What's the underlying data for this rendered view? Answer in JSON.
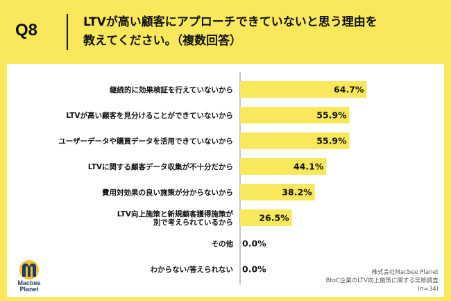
{
  "header": {
    "qnum": "Q8",
    "title_line1": "LTVが高い顧客にアプローチできていないと思う理由を",
    "title_line2": "教えてください。（複数回答）"
  },
  "chart_data": {
    "type": "bar",
    "orientation": "horizontal",
    "xlim": [
      0,
      100
    ],
    "bar_color": "#f9e85b",
    "categories": [
      [
        "継続的に効果検証を行えていないから"
      ],
      [
        "LTVが高い顧客を見分けることができていないから"
      ],
      [
        "ユーザーデータや購買データを活用できていないから"
      ],
      [
        "LTVに関する顧客データ収集が不十分だから"
      ],
      [
        "費用対効果の良い施策が分からないから"
      ],
      [
        "LTV向上施策と新規顧客獲得施策が",
        "別で考えられているから"
      ],
      [
        "その他"
      ],
      [
        "わからない/答えられない"
      ]
    ],
    "values": [
      64.7,
      55.9,
      55.9,
      44.1,
      38.2,
      26.5,
      0.0,
      0.0
    ],
    "value_labels": [
      "64.7%",
      "55.9%",
      "55.9%",
      "44.1%",
      "38.2%",
      "26.5%",
      "0.0%",
      "0.0%"
    ]
  },
  "logo": {
    "line1": "Macbee",
    "line2": "Planet"
  },
  "footnote": {
    "line1": "株式会社Macbee Planet",
    "line2": "BtoC企業のLTV向上施策に関する実態調査",
    "line3": "(n=34)"
  },
  "colors": {
    "background": "#f9e85b",
    "logo_blue": "#1f3a6b",
    "logo_yellow": "#f2c230"
  }
}
